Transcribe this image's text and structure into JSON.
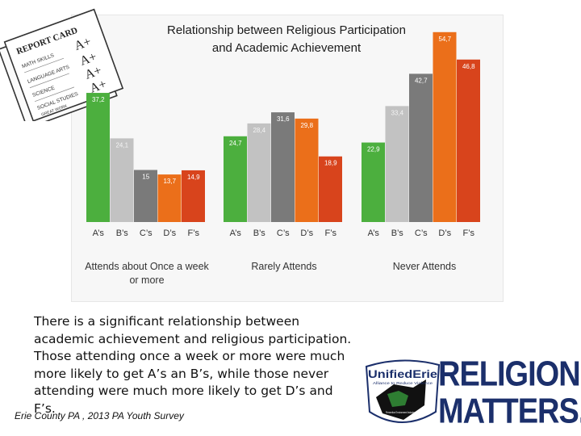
{
  "chart_data": {
    "type": "bar",
    "title": "Relationship between Religious Participation\nand Academic Achievement",
    "categories": [
      "A’s",
      "B’s",
      "C’s",
      "D’s",
      "F’s"
    ],
    "ylim": [
      0,
      60
    ],
    "groups": [
      {
        "name": "Attends about Once a week or more",
        "values": [
          37.2,
          24.1,
          15,
          13.7,
          14.9
        ],
        "labels": [
          "37,2",
          "24,1",
          "15",
          "13,7",
          "14,9"
        ]
      },
      {
        "name": "Rarely Attends",
        "values": [
          24.7,
          28.4,
          31.6,
          29.8,
          18.9
        ],
        "labels": [
          "24,7",
          "28,4",
          "31,6",
          "29,8",
          "18,9"
        ]
      },
      {
        "name": "Never Attends",
        "values": [
          22.9,
          33.4,
          42.7,
          54.7,
          46.8
        ],
        "labels": [
          "22,9",
          "33,4",
          "42,7",
          "54,7",
          "46,8"
        ]
      }
    ],
    "colors": [
      "#4caf3e",
      "#c2c2c2",
      "#7a7a7a",
      "#eb6f1a",
      "#d8441c"
    ],
    "grid": false,
    "legend": "none"
  },
  "summary_text": "There is a significant relationship between academic achievement and religious participation.  Those attending once a week or more were much more likely to get A’s an B’s, while those never attending were much more likely to get D’s and F’s.",
  "source_text": "Erie County PA , 2013 PA Youth Survey",
  "report_card": {
    "heading": "REPORT CARD",
    "subjects": [
      "MATH SKILLS",
      "LANGUAGE ARTS",
      "SCIENCE",
      "SOCIAL STUDIES"
    ],
    "grade": "A+",
    "footer": "GREAT WORK"
  },
  "logo": {
    "brand": "UnifiedErie",
    "brand_sub": "Alliance to Reduce Violence",
    "badge_text": "Prevention Environment Industry",
    "headline_line1": "RELIGION",
    "headline_line2": "MATTERS."
  }
}
